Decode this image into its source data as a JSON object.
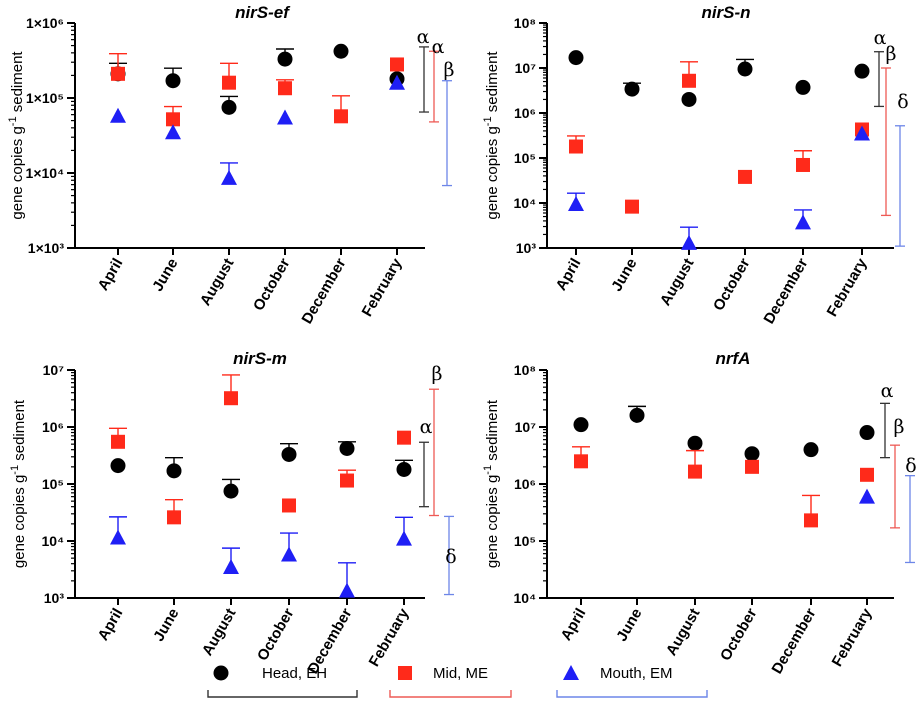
{
  "chart_data": [
    {
      "type": "scatter",
      "title": "nirS-ef",
      "title_bold_part": "nirS",
      "title_rest": "-ef",
      "ylabel": "gene copies g-1 sediment",
      "ylabel_main": "gene copies g",
      "ylabel_sup": "-1",
      "ylabel_tail": " sediment",
      "yscale": "log",
      "ylim": [
        1000,
        1000000
      ],
      "ytick_labels": [
        "1×10³",
        "1×10⁴",
        "1×10⁵",
        "1×10⁶"
      ],
      "categories": [
        "April",
        "June",
        "August",
        "October",
        "December",
        "February"
      ],
      "series": [
        {
          "name": "Head, EH",
          "values": [
            210000,
            170000,
            75000,
            330000,
            420000,
            180000
          ],
          "err": [
            80000,
            80000,
            30000,
            120000,
            0,
            0
          ]
        },
        {
          "name": "Mid, ME",
          "values": [
            210000,
            52000,
            160000,
            135000,
            57000,
            280000
          ],
          "err": [
            180000,
            25000,
            130000,
            40000,
            50000,
            0
          ]
        },
        {
          "name": "Mouth, EM",
          "values": [
            58000,
            35000,
            8600,
            55000,
            null,
            160000
          ],
          "err": [
            0,
            0,
            5000,
            0,
            0,
            0
          ]
        }
      ],
      "group_bars": [
        {
          "series": "Head, EH",
          "mean": 240000,
          "low": 65000,
          "high": 480000,
          "letter": "α"
        },
        {
          "series": "Mid, ME",
          "mean": 200000,
          "low": 48000,
          "high": 420000,
          "letter": "α"
        },
        {
          "series": "Mouth, EM",
          "mean": 170000,
          "low": 6800,
          "high": 170000,
          "letter": "β"
        }
      ]
    },
    {
      "type": "scatter",
      "title": "nirS-n",
      "title_bold_part": "nirS",
      "title_rest": "-n",
      "ylabel": "gene copies g-1 sediment",
      "ylabel_main": "gene copies g",
      "ylabel_sup": "-1",
      "ylabel_tail": " sediment",
      "yscale": "log",
      "ylim": [
        1000,
        100000000
      ],
      "ytick_labels": [
        "10³",
        "10⁴",
        "10⁵",
        "10⁶",
        "10⁷",
        "10⁸"
      ],
      "categories": [
        "April",
        "June",
        "August",
        "October",
        "December",
        "February"
      ],
      "series": [
        {
          "name": "Head, EH",
          "values": [
            17000000,
            3400000,
            2000000,
            9500000,
            3700000,
            8500000
          ],
          "err": [
            0,
            1200000,
            0,
            6000000,
            0,
            0
          ]
        },
        {
          "name": "Mid, ME",
          "values": [
            180000,
            8300,
            5200000,
            38000,
            70000,
            430000
          ],
          "err": [
            130000,
            0,
            8500000,
            0,
            75000,
            0
          ]
        },
        {
          "name": "Mouth, EM",
          "values": [
            9500,
            null,
            1300,
            null,
            3700,
            350000
          ],
          "err": [
            7000,
            0,
            1600,
            0,
            3300,
            0
          ]
        }
      ],
      "group_bars": [
        {
          "series": "Head, EH",
          "mean": 7000000,
          "low": 1400000,
          "high": 23000000,
          "letter": "α"
        },
        {
          "series": "Mid, ME",
          "mean": 1000000,
          "low": 5300,
          "high": 10000000,
          "letter": "β"
        },
        {
          "series": "Mouth, EM",
          "mean": 70000,
          "low": 1100,
          "high": 520000,
          "letter": "δ"
        }
      ]
    },
    {
      "type": "scatter",
      "title": "nirS-m",
      "title_bold_part": "nirS",
      "title_rest": "-m",
      "ylabel": "gene copies g-1 sediment",
      "ylabel_main": "gene copies g",
      "ylabel_sup": "-1",
      "ylabel_tail": " sediment",
      "yscale": "log",
      "ylim": [
        1000,
        10000000
      ],
      "ytick_labels": [
        "10³",
        "10⁴",
        "10⁵",
        "10⁶",
        "10⁷"
      ],
      "categories": [
        "April",
        "June",
        "August",
        "October",
        "December",
        "February"
      ],
      "series": [
        {
          "name": "Head, EH",
          "values": [
            210000,
            170000,
            75000,
            330000,
            420000,
            180000
          ],
          "err": [
            0,
            120000,
            45000,
            180000,
            130000,
            80000
          ]
        },
        {
          "name": "Mid, ME",
          "values": [
            550000,
            26000,
            3200000,
            42000,
            115000,
            650000
          ],
          "err": [
            400000,
            27000,
            5000000,
            0,
            60000,
            0
          ]
        },
        {
          "name": "Mouth, EM",
          "values": [
            11500,
            null,
            3500,
            5800,
            1350,
            11000
          ],
          "err": [
            15000,
            0,
            4000,
            8000,
            2800,
            15000
          ]
        }
      ],
      "group_bars": [
        {
          "series": "Head, EH",
          "mean": 200000,
          "low": 40000,
          "high": 540000,
          "letter": "α"
        },
        {
          "series": "Mid, ME",
          "mean": 900000,
          "low": 28000,
          "high": 4600000,
          "letter": "β"
        },
        {
          "series": "Mouth, EM",
          "mean": 8000,
          "low": 1150,
          "high": 27000,
          "letter": "δ"
        }
      ]
    },
    {
      "type": "scatter",
      "title": "nrfA",
      "title_bold_part": "nrfA",
      "title_rest": "",
      "ylabel": "gene copies g-1 sediment",
      "ylabel_main": "gene copies g",
      "ylabel_sup": "-1",
      "ylabel_tail": " sediment",
      "yscale": "log",
      "ylim": [
        10000,
        100000000
      ],
      "ytick_labels": [
        "10⁴",
        "10⁵",
        "10⁶",
        "10⁷",
        "10⁸"
      ],
      "categories": [
        "April",
        "June",
        "August",
        "October",
        "December",
        "February"
      ],
      "series": [
        {
          "name": "Head, EH",
          "values": [
            11000000,
            16000000,
            5200000,
            3400000,
            4000000,
            8000000
          ],
          "err": [
            0,
            7000000,
            0,
            0,
            0,
            0
          ]
        },
        {
          "name": "Mid, ME",
          "values": [
            2500000,
            null,
            1650000,
            2000000,
            230000,
            1450000
          ],
          "err": [
            2000000,
            0,
            2200000,
            0,
            400000,
            0
          ]
        },
        {
          "name": "Mouth, EM",
          "values": [
            null,
            null,
            null,
            null,
            null,
            600000
          ],
          "err": [
            0,
            0,
            0,
            0,
            0,
            0
          ]
        }
      ],
      "group_bars": [
        {
          "series": "Head, EH",
          "mean": 8000000,
          "low": 2900000,
          "high": 26000000,
          "letter": "α"
        },
        {
          "series": "Mid, ME",
          "mean": 1500000,
          "low": 170000,
          "high": 4800000,
          "letter": "β"
        },
        {
          "series": "Mouth, EM",
          "mean": 600000,
          "low": 42000,
          "high": 1400000,
          "letter": "δ"
        }
      ]
    }
  ],
  "legend": [
    {
      "label": "Head, EH",
      "marker": "circle",
      "color": "#000000"
    },
    {
      "label": "Mid, ME",
      "marker": "square",
      "color": "#ff2a1a"
    },
    {
      "label": "Mouth, EM",
      "marker": "triangle",
      "color": "#1f1ff5"
    }
  ],
  "colors": {
    "Head, EH": "#000000",
    "Mid, ME": "#ff2a1a",
    "Mouth, EM": "#1f1ff5"
  },
  "bar_colors": {
    "Head, EH": "#333333",
    "Mid, ME": "#ee5a55",
    "Mouth, EM": "#6d86e8"
  }
}
